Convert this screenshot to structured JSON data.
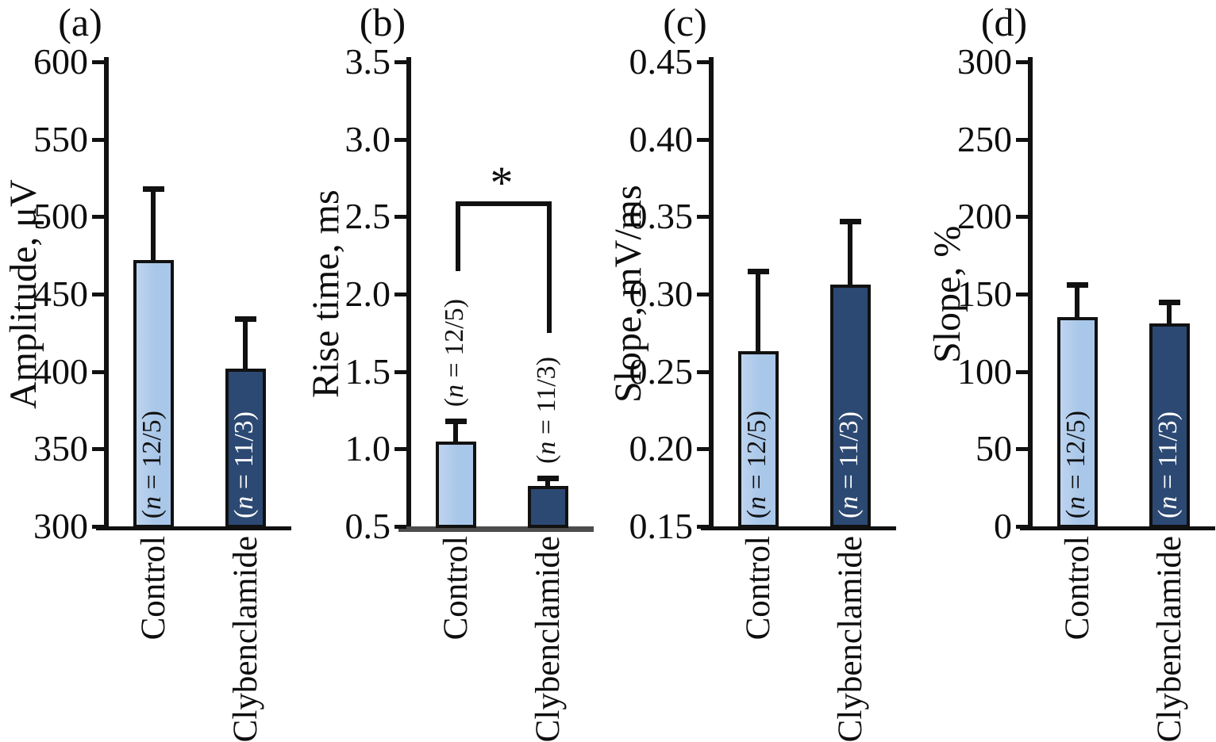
{
  "figure": {
    "background": "#ffffff",
    "colors": {
      "control_fill": "#a9c7e9",
      "control_fill_edge_highlight": "#bed4ef",
      "clybenclamide_fill": "#2c4973",
      "bar_border": "#111111",
      "axis": "#111111",
      "panel_b_baseline": "#4d4d4d",
      "text": "#0e0e0e",
      "label_on_dark": "#ffffff",
      "label_on_light": "#111111"
    },
    "categories": [
      "Control",
      "Clybenclamide"
    ]
  },
  "chart_data": [
    {
      "type": "bar",
      "panel_label": "(a)",
      "ylabel": "Amplitude, μV",
      "ylim": [
        300,
        600
      ],
      "yticks": [
        "600",
        "550",
        "500",
        "450",
        "400",
        "350",
        "300"
      ],
      "grid": false,
      "legend": null,
      "bars": [
        {
          "category": "Control",
          "value": 472,
          "error": 46,
          "n_pre": "(",
          "n_var": "n",
          "n_rest": " = 12/5)",
          "fill": "control",
          "label_pos": "inside",
          "label_color": "#111111"
        },
        {
          "category": "Clybenclamide",
          "value": 402,
          "error": 32,
          "n_pre": "(",
          "n_var": "n",
          "n_rest": " = 11/3)",
          "fill": "clybenclamide",
          "label_pos": "inside",
          "label_color": "#ffffff"
        }
      ]
    },
    {
      "type": "bar",
      "panel_label": "(b)",
      "ylabel": "Rise time, ms",
      "ylim": [
        0.5,
        3.5
      ],
      "yticks": [
        "3.5",
        "3.0",
        "2.5",
        "2.0",
        "1.5",
        "1.0",
        "0.5"
      ],
      "grid": false,
      "legend": null,
      "bars": [
        {
          "category": "Control",
          "value": 1.05,
          "error": 0.13,
          "n_pre": "(",
          "n_var": "n",
          "n_rest": " = 12/5)",
          "fill": "control",
          "label_pos": "above",
          "label_color": "#111111"
        },
        {
          "category": "Clybenclamide",
          "value": 0.76,
          "error": 0.05,
          "n_pre": "(",
          "n_var": "n",
          "n_rest": " = 11/3)",
          "fill": "clybenclamide",
          "label_pos": "above",
          "label_color": "#111111"
        }
      ],
      "significance": {
        "symbol": "*",
        "bar_y": 2.6,
        "left_drop_to": 2.15,
        "right_drop_to": 1.75
      }
    },
    {
      "type": "bar",
      "panel_label": "(c)",
      "ylabel": "Slope, mV/ms",
      "ylim": [
        0.15,
        0.45
      ],
      "yticks": [
        "0.45",
        "0.40",
        "0.35",
        "0.30",
        "0.25",
        "0.20",
        "0.15"
      ],
      "grid": false,
      "legend": null,
      "bars": [
        {
          "category": "Control",
          "value": 0.263,
          "error": 0.052,
          "n_pre": "(",
          "n_var": "n",
          "n_rest": " = 12/5)",
          "fill": "control",
          "label_pos": "inside",
          "label_color": "#111111"
        },
        {
          "category": "Clybenclamide",
          "value": 0.306,
          "error": 0.041,
          "n_pre": "(",
          "n_var": "n",
          "n_rest": " = 11/3)",
          "fill": "clybenclamide",
          "label_pos": "inside",
          "label_color": "#ffffff"
        }
      ]
    },
    {
      "type": "bar",
      "panel_label": "(d)",
      "ylabel": "Slope, %",
      "ylim": [
        0,
        300
      ],
      "yticks": [
        "300",
        "250",
        "200",
        "150",
        "100",
        "50",
        "0"
      ],
      "grid": false,
      "legend": null,
      "bars": [
        {
          "category": "Control",
          "value": 135,
          "error": 21,
          "n_pre": "(",
          "n_var": "n",
          "n_rest": " = 12/5)",
          "fill": "control",
          "label_pos": "inside",
          "label_color": "#111111"
        },
        {
          "category": "Clybenclamide",
          "value": 131,
          "error": 14,
          "n_pre": "(",
          "n_var": "n",
          "n_rest": " = 11/3)",
          "fill": "clybenclamide",
          "label_pos": "inside",
          "label_color": "#ffffff"
        }
      ]
    }
  ]
}
